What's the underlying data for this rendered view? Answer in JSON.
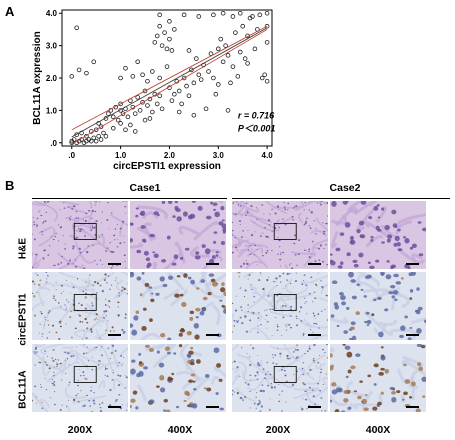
{
  "panel_a": {
    "letter": "A",
    "chart_data": {
      "type": "scatter",
      "xlabel": "circEPSTI1 expression",
      "ylabel": "BCL11A expression",
      "xlim": [
        -0.2,
        4.1
      ],
      "ylim": [
        -0.1,
        4.1
      ],
      "x_ticks": [
        ".0",
        "1.0",
        "2.0",
        "3.0",
        "4.0"
      ],
      "y_ticks": [
        ".0",
        "1.0",
        "2.0",
        "3.0",
        "4.0"
      ],
      "stats": {
        "r": "r = 0.716",
        "p": "P＜0.001"
      },
      "fit_line": {
        "x": [
          0.0,
          4.0
        ],
        "y": [
          0.18,
          3.55
        ]
      },
      "points": [
        [
          0.0,
          0.0
        ],
        [
          0.0,
          0.05
        ],
        [
          0.05,
          0.1
        ],
        [
          0.1,
          0.0
        ],
        [
          0.15,
          0.05
        ],
        [
          0.2,
          0.1
        ],
        [
          0.25,
          0.0
        ],
        [
          0.3,
          0.05
        ],
        [
          0.35,
          0.1
        ],
        [
          0.4,
          0.05
        ],
        [
          0.45,
          0.15
        ],
        [
          0.5,
          0.05
        ],
        [
          0.55,
          0.2
        ],
        [
          0.6,
          0.1
        ],
        [
          0.65,
          0.3
        ],
        [
          0.7,
          0.2
        ],
        [
          0.1,
          0.25
        ],
        [
          0.2,
          0.3
        ],
        [
          0.3,
          0.2
        ],
        [
          0.4,
          0.35
        ],
        [
          0.5,
          0.4
        ],
        [
          0.0,
          2.05
        ],
        [
          0.15,
          2.25
        ],
        [
          0.1,
          3.55
        ],
        [
          0.3,
          2.15
        ],
        [
          0.45,
          2.5
        ],
        [
          0.6,
          0.5
        ],
        [
          0.7,
          0.75
        ],
        [
          0.75,
          0.9
        ],
        [
          0.8,
          1.0
        ],
        [
          0.85,
          0.8
        ],
        [
          0.9,
          1.1
        ],
        [
          0.95,
          0.7
        ],
        [
          1.0,
          0.6
        ],
        [
          1.0,
          1.0
        ],
        [
          1.0,
          1.2
        ],
        [
          1.05,
          0.9
        ],
        [
          1.1,
          1.05
        ],
        [
          1.1,
          0.4
        ],
        [
          1.15,
          0.8
        ],
        [
          1.2,
          1.3
        ],
        [
          1.2,
          0.55
        ],
        [
          1.25,
          1.1
        ],
        [
          1.3,
          0.9
        ],
        [
          1.35,
          1.4
        ],
        [
          1.4,
          1.0
        ],
        [
          1.45,
          1.25
        ],
        [
          1.5,
          0.7
        ],
        [
          1.5,
          1.6
        ],
        [
          1.55,
          1.15
        ],
        [
          1.6,
          1.35
        ],
        [
          1.65,
          0.95
        ],
        [
          1.7,
          1.5
        ],
        [
          1.75,
          1.2
        ],
        [
          1.8,
          1.45
        ],
        [
          1.85,
          1.05
        ],
        [
          1.0,
          2.0
        ],
        [
          1.1,
          2.3
        ],
        [
          1.25,
          2.05
        ],
        [
          1.35,
          2.5
        ],
        [
          1.45,
          2.1
        ],
        [
          1.55,
          1.9
        ],
        [
          1.65,
          2.2
        ],
        [
          1.8,
          2.0
        ],
        [
          1.7,
          3.1
        ],
        [
          1.75,
          3.3
        ],
        [
          1.8,
          3.6
        ],
        [
          1.8,
          3.95
        ],
        [
          1.85,
          3.0
        ],
        [
          1.9,
          3.4
        ],
        [
          1.95,
          2.9
        ],
        [
          2.0,
          3.2
        ],
        [
          2.0,
          3.75
        ],
        [
          2.05,
          2.85
        ],
        [
          2.1,
          3.5
        ],
        [
          2.0,
          1.7
        ],
        [
          2.05,
          1.3
        ],
        [
          2.1,
          1.5
        ],
        [
          2.15,
          1.9
        ],
        [
          2.2,
          1.6
        ],
        [
          2.25,
          1.2
        ],
        [
          2.3,
          2.0
        ],
        [
          2.35,
          1.75
        ],
        [
          2.4,
          1.45
        ],
        [
          2.45,
          2.25
        ],
        [
          2.5,
          1.85
        ],
        [
          2.55,
          2.6
        ],
        [
          2.6,
          2.1
        ],
        [
          2.65,
          1.95
        ],
        [
          2.7,
          2.4
        ],
        [
          2.8,
          2.2
        ],
        [
          2.85,
          2.75
        ],
        [
          2.9,
          2.0
        ],
        [
          2.95,
          1.5
        ],
        [
          3.0,
          1.8
        ],
        [
          3.0,
          2.9
        ],
        [
          3.05,
          3.2
        ],
        [
          3.1,
          2.5
        ],
        [
          3.15,
          3.0
        ],
        [
          3.2,
          2.7
        ],
        [
          3.25,
          1.85
        ],
        [
          3.3,
          2.35
        ],
        [
          3.35,
          3.4
        ],
        [
          3.4,
          2.05
        ],
        [
          3.45,
          2.8
        ],
        [
          3.5,
          3.6
        ],
        [
          3.55,
          2.6
        ],
        [
          3.6,
          3.3
        ],
        [
          3.65,
          3.85
        ],
        [
          3.7,
          3.9
        ],
        [
          3.75,
          2.9
        ],
        [
          3.8,
          3.5
        ],
        [
          3.85,
          3.95
        ],
        [
          3.9,
          2.0
        ],
        [
          3.95,
          2.1
        ],
        [
          4.0,
          4.0
        ],
        [
          4.0,
          3.6
        ],
        [
          4.0,
          3.1
        ],
        [
          4.0,
          1.9
        ],
        [
          3.3,
          3.9
        ],
        [
          3.45,
          4.0
        ],
        [
          3.1,
          4.0
        ],
        [
          2.9,
          3.95
        ],
        [
          2.6,
          3.9
        ],
        [
          2.3,
          3.95
        ],
        [
          2.5,
          0.85
        ],
        [
          2.75,
          1.05
        ],
        [
          3.2,
          1.0
        ],
        [
          0.55,
          0.6
        ],
        [
          0.85,
          0.45
        ],
        [
          1.3,
          0.35
        ],
        [
          1.6,
          0.75
        ],
        [
          2.2,
          0.95
        ],
        [
          1.95,
          2.35
        ],
        [
          2.4,
          2.85
        ],
        [
          3.6,
          2.45
        ]
      ]
    }
  },
  "panel_b": {
    "letter": "B",
    "case1": "Case1",
    "case2": "Case2",
    "rows": [
      "H&E",
      "circEPSTI1",
      "BCL11A"
    ],
    "magnifications": [
      "200X",
      "400X",
      "200X",
      "400X"
    ],
    "colors": {
      "he_bg": "#d9c6e3",
      "he_stroma": "#c4a7d6",
      "he_nuclei": "#6b4f9e",
      "ihc_bg": "#dde2ef",
      "ihc_stroma": "#c9d0e4",
      "ihc_nuclei": "#5a6aa5",
      "dab": "#6b3e1f",
      "dab_light": "#a57a52"
    }
  }
}
